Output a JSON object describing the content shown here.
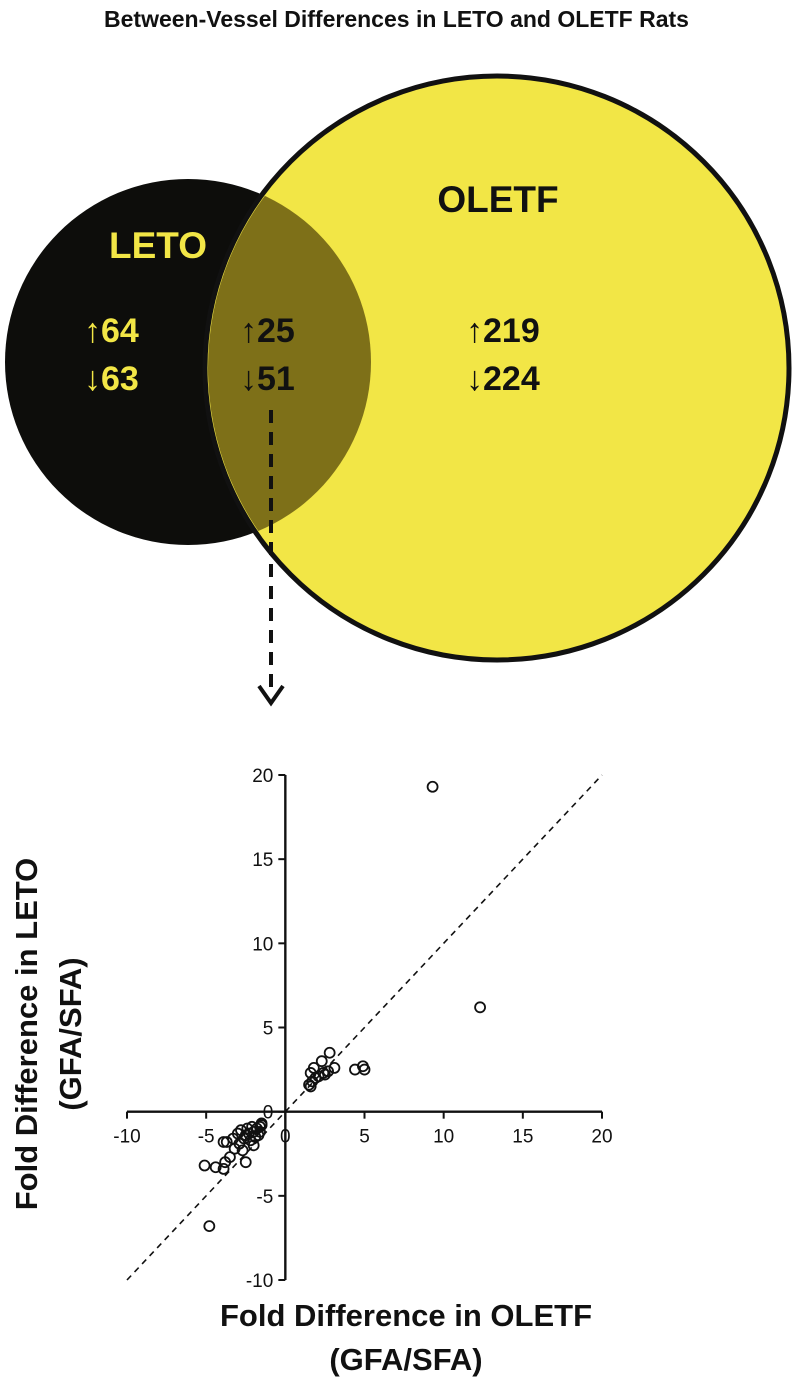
{
  "title": "Between-Vessel Differences in LETO and OLETF Rats",
  "colors": {
    "leto": "#0d0d0b",
    "oletf": "#f2e646",
    "overlap": "#7e7018",
    "leto_text": "#f2e646",
    "dark_text": "#111111"
  },
  "venn": {
    "leto": {
      "label": "LETO",
      "up": "↑64",
      "down": "↓63"
    },
    "overlap": {
      "up": "↑25",
      "down": "↓51"
    },
    "oletf": {
      "label": "OLETF",
      "up": "↑219",
      "down": "↓224"
    }
  },
  "chart_data": {
    "type": "scatter",
    "title": "",
    "xlabel_line1": "Fold Difference in OLETF",
    "xlabel_line2": "(GFA/SFA)",
    "ylabel_line1": "Fold Difference in LETO",
    "ylabel_line2": "(GFA/SFA)",
    "xlim": [
      -10,
      20
    ],
    "ylim": [
      -10,
      20
    ],
    "x_ticks": [
      -10,
      -5,
      0,
      5,
      10,
      15,
      20
    ],
    "y_ticks": [
      -10,
      -5,
      0,
      5,
      10,
      15,
      20
    ],
    "x_tick_labels": [
      "-10",
      "-5",
      "0",
      "5",
      "10",
      "15",
      "20"
    ],
    "y_tick_labels": [
      "-10",
      "-5",
      "0",
      "5",
      "10",
      "15",
      "20"
    ],
    "reference_line": "y = x (dashed)",
    "points": [
      [
        9.3,
        19.3
      ],
      [
        12.3,
        6.2
      ],
      [
        4.9,
        2.7
      ],
      [
        5.0,
        2.5
      ],
      [
        4.4,
        2.5
      ],
      [
        2.8,
        3.5
      ],
      [
        2.3,
        3.0
      ],
      [
        3.1,
        2.6
      ],
      [
        2.7,
        2.4
      ],
      [
        2.5,
        2.2
      ],
      [
        1.8,
        2.6
      ],
      [
        1.6,
        2.3
      ],
      [
        1.9,
        2.0
      ],
      [
        1.7,
        1.8
      ],
      [
        1.5,
        1.6
      ],
      [
        1.6,
        1.5
      ],
      [
        2.1,
        2.1
      ],
      [
        2.4,
        2.3
      ],
      [
        -4.8,
        -6.8
      ],
      [
        -5.1,
        -3.2
      ],
      [
        -4.4,
        -3.3
      ],
      [
        -3.9,
        -3.4
      ],
      [
        -3.8,
        -3.0
      ],
      [
        -3.5,
        -2.7
      ],
      [
        -2.5,
        -3.0
      ],
      [
        -3.2,
        -2.2
      ],
      [
        -2.9,
        -1.9
      ],
      [
        -2.6,
        -1.6
      ],
      [
        -2.3,
        -1.3
      ],
      [
        -2.0,
        -1.2
      ],
      [
        -1.8,
        -1.0
      ],
      [
        -1.6,
        -0.9
      ],
      [
        -1.5,
        -0.8
      ],
      [
        -1.5,
        -0.7
      ],
      [
        -3.7,
        -1.8
      ],
      [
        -2.1,
        -0.9
      ],
      [
        -3.0,
        -1.3
      ],
      [
        -2.4,
        -1.0
      ],
      [
        -1.7,
        -1.4
      ],
      [
        -2.8,
        -1.1
      ],
      [
        -2.2,
        -1.7
      ],
      [
        -1.9,
        -1.5
      ],
      [
        -3.3,
        -1.6
      ],
      [
        -2.7,
        -2.3
      ],
      [
        -2.0,
        -2.0
      ],
      [
        -3.9,
        -1.8
      ],
      [
        -1.6,
        -1.2
      ],
      [
        -2.5,
        -1.4
      ]
    ]
  }
}
